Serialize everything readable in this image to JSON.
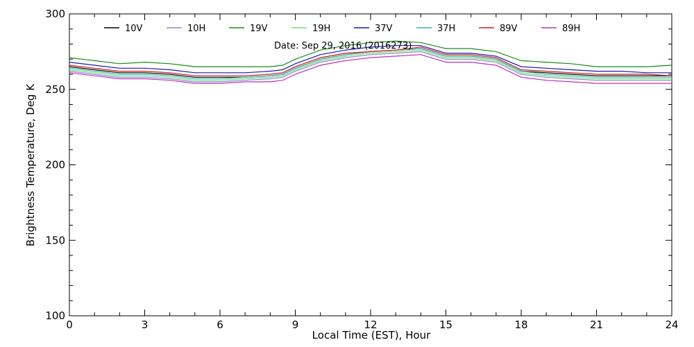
{
  "chart_data": {
    "type": "line",
    "title": "",
    "annotation": "Date: Sep 29, 2016 (2016273)",
    "xlabel": "Local Time (EST), Hour",
    "ylabel": "Brightness Temperature, Deg K",
    "xlim": [
      0,
      24
    ],
    "ylim": [
      100,
      300
    ],
    "x_ticks": [
      0,
      3,
      6,
      9,
      12,
      15,
      18,
      21,
      24
    ],
    "y_ticks": [
      100,
      150,
      200,
      250,
      300
    ],
    "grid": false,
    "legend_position": "top",
    "x": [
      0,
      1,
      2,
      3,
      4,
      5,
      6,
      7,
      8,
      8.5,
      9,
      10,
      11,
      12,
      13,
      14,
      15,
      16,
      17,
      18,
      19,
      20,
      21,
      22,
      23,
      24
    ],
    "series": [
      {
        "name": "10V",
        "color": "#000000",
        "values": [
          265,
          263,
          261,
          261,
          260,
          258,
          258,
          258,
          259,
          260,
          264,
          270,
          273,
          275,
          276,
          277,
          272,
          272,
          270,
          262,
          261,
          260,
          259,
          259,
          259,
          259
        ]
      },
      {
        "name": "10H",
        "color": "#8888cc",
        "values": [
          262,
          260,
          258,
          258,
          257,
          255,
          255,
          256,
          257,
          258,
          262,
          268,
          271,
          273,
          274,
          275,
          270,
          270,
          268,
          260,
          258,
          257,
          256,
          256,
          256,
          256
        ]
      },
      {
        "name": "19V",
        "color": "#1a8a1a",
        "values": [
          271,
          269,
          267,
          268,
          267,
          265,
          265,
          265,
          265,
          266,
          270,
          276,
          279,
          281,
          282,
          281,
          277,
          277,
          275,
          269,
          268,
          267,
          265,
          265,
          265,
          266
        ]
      },
      {
        "name": "19H",
        "color": "#77dd77",
        "values": [
          263,
          261,
          259,
          259,
          258,
          256,
          256,
          257,
          258,
          259,
          263,
          269,
          272,
          274,
          275,
          276,
          271,
          271,
          269,
          261,
          259,
          258,
          257,
          257,
          257,
          257
        ]
      },
      {
        "name": "37V",
        "color": "#1a1aaa",
        "values": [
          268,
          266,
          264,
          264,
          263,
          261,
          261,
          261,
          262,
          263,
          267,
          273,
          276,
          278,
          279,
          279,
          274,
          274,
          272,
          265,
          264,
          263,
          262,
          262,
          261,
          261
        ]
      },
      {
        "name": "37H",
        "color": "#3cb4b4",
        "values": [
          264,
          262,
          260,
          260,
          259,
          257,
          257,
          258,
          259,
          260,
          264,
          270,
          273,
          275,
          276,
          277,
          272,
          272,
          270,
          262,
          260,
          259,
          258,
          258,
          258,
          258
        ]
      },
      {
        "name": "89V",
        "color": "#cc1a1a",
        "values": [
          266,
          264,
          262,
          262,
          261,
          259,
          259,
          259,
          260,
          261,
          265,
          271,
          274,
          275,
          276,
          278,
          273,
          273,
          271,
          263,
          262,
          261,
          260,
          260,
          260,
          259
        ]
      },
      {
        "name": "89H",
        "color": "#bb33bb",
        "values": [
          261,
          259,
          257,
          257,
          256,
          254,
          254,
          255,
          255,
          256,
          260,
          266,
          269,
          271,
          272,
          273,
          268,
          268,
          266,
          258,
          256,
          255,
          254,
          254,
          254,
          254
        ]
      }
    ]
  }
}
